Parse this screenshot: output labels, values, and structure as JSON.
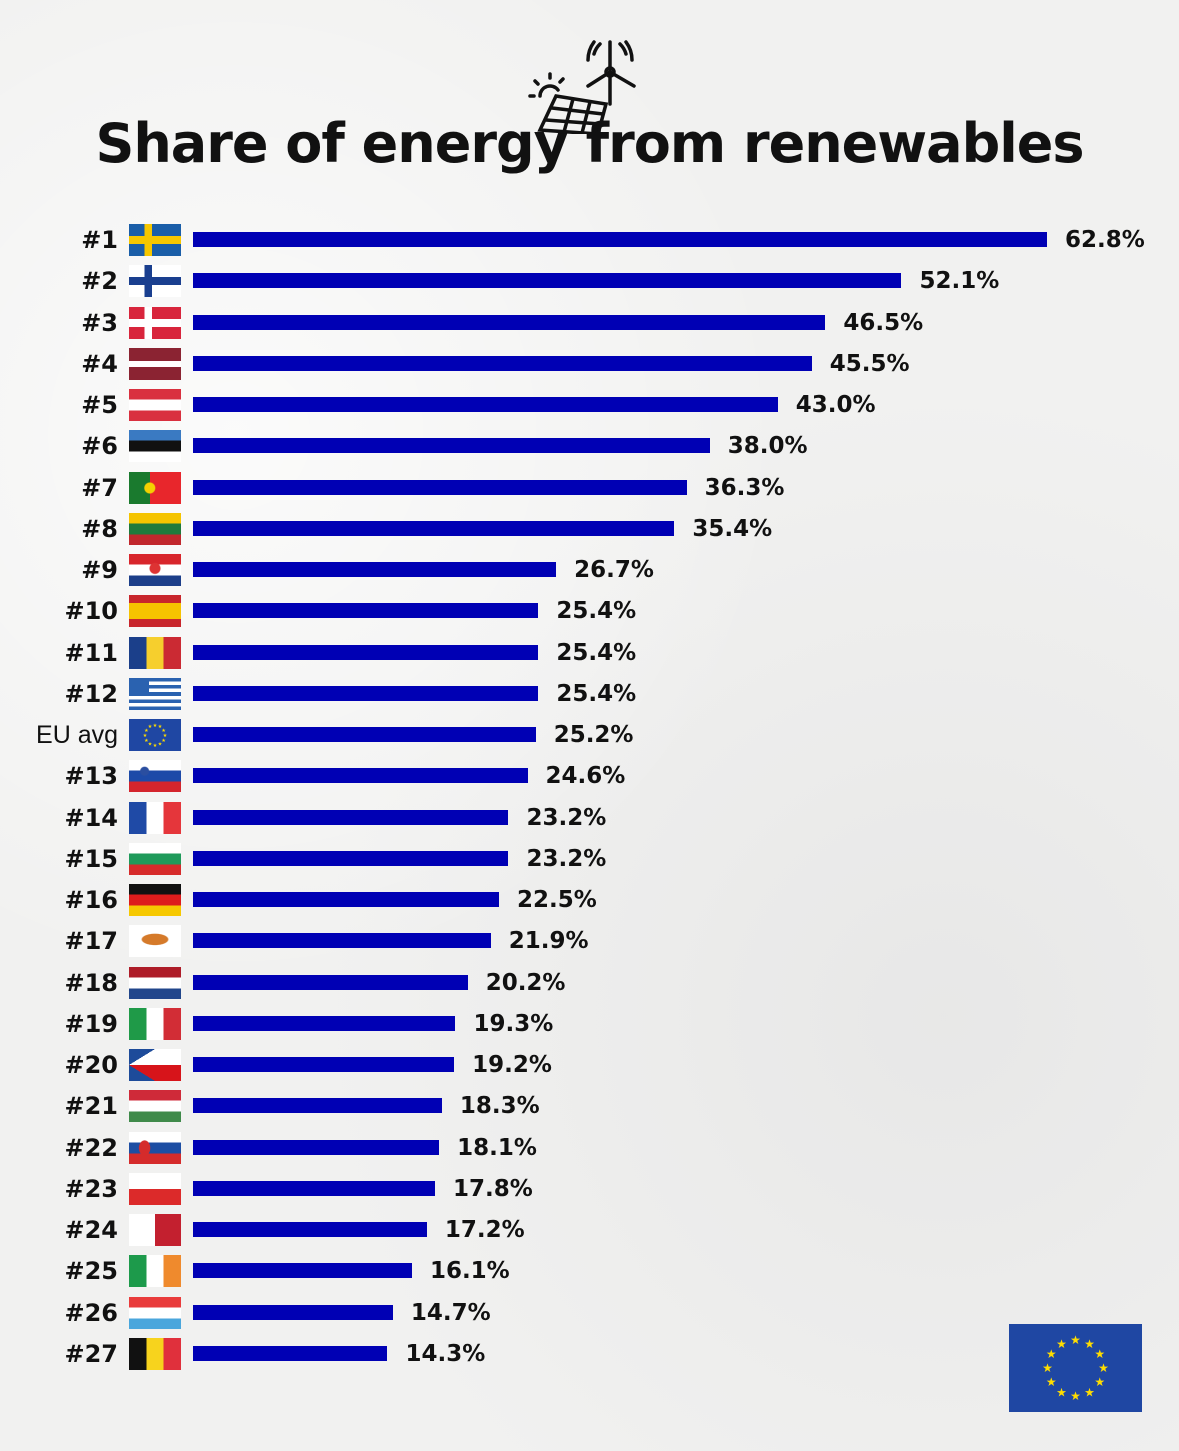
{
  "chart_data": {
    "type": "bar",
    "orientation": "horizontal",
    "title": "Share of energy from renewables",
    "unit": "%",
    "xlim": [
      0,
      62.8
    ],
    "rows": [
      {
        "rank": "#1",
        "flag": "flag-se",
        "value": 62.8,
        "label": "62.8%"
      },
      {
        "rank": "#2",
        "flag": "flag-fi",
        "value": 52.1,
        "label": "52.1%"
      },
      {
        "rank": "#3",
        "flag": "flag-dk",
        "value": 46.5,
        "label": "46.5%"
      },
      {
        "rank": "#4",
        "flag": "flag-lv",
        "value": 45.5,
        "label": "45.5%"
      },
      {
        "rank": "#5",
        "flag": "flag-at",
        "value": 43.0,
        "label": "43.0%"
      },
      {
        "rank": "#6",
        "flag": "flag-ee",
        "value": 38.0,
        "label": "38.0%"
      },
      {
        "rank": "#7",
        "flag": "flag-pt",
        "value": 36.3,
        "label": "36.3%"
      },
      {
        "rank": "#8",
        "flag": "flag-lt",
        "value": 35.4,
        "label": "35.4%"
      },
      {
        "rank": "#9",
        "flag": "flag-hr",
        "value": 26.7,
        "label": "26.7%"
      },
      {
        "rank": "#10",
        "flag": "flag-es",
        "value": 25.4,
        "label": "25.4%"
      },
      {
        "rank": "#11",
        "flag": "flag-ro",
        "value": 25.4,
        "label": "25.4%"
      },
      {
        "rank": "#12",
        "flag": "flag-gr",
        "value": 25.4,
        "label": "25.4%"
      },
      {
        "rank": "EU avg",
        "flag": "flag-eu",
        "value": 25.2,
        "label": "25.2%"
      },
      {
        "rank": "#13",
        "flag": "flag-si",
        "value": 24.6,
        "label": "24.6%"
      },
      {
        "rank": "#14",
        "flag": "flag-fr",
        "value": 23.2,
        "label": "23.2%"
      },
      {
        "rank": "#15",
        "flag": "flag-bg",
        "value": 23.2,
        "label": "23.2%"
      },
      {
        "rank": "#16",
        "flag": "flag-de",
        "value": 22.5,
        "label": "22.5%"
      },
      {
        "rank": "#17",
        "flag": "flag-cy",
        "value": 21.9,
        "label": "21.9%"
      },
      {
        "rank": "#18",
        "flag": "flag-nl",
        "value": 20.2,
        "label": "20.2%"
      },
      {
        "rank": "#19",
        "flag": "flag-it",
        "value": 19.3,
        "label": "19.3%"
      },
      {
        "rank": "#20",
        "flag": "flag-cz",
        "value": 19.2,
        "label": "19.2%"
      },
      {
        "rank": "#21",
        "flag": "flag-hu",
        "value": 18.3,
        "label": "18.3%"
      },
      {
        "rank": "#22",
        "flag": "flag-sk",
        "value": 18.1,
        "label": "18.1%"
      },
      {
        "rank": "#23",
        "flag": "flag-pl",
        "value": 17.8,
        "label": "17.8%"
      },
      {
        "rank": "#24",
        "flag": "flag-mt",
        "value": 17.2,
        "label": "17.2%"
      },
      {
        "rank": "#25",
        "flag": "flag-ie",
        "value": 16.1,
        "label": "16.1%"
      },
      {
        "rank": "#26",
        "flag": "flag-lu",
        "value": 14.7,
        "label": "14.7%"
      },
      {
        "rank": "#27",
        "flag": "flag-be",
        "value": 14.3,
        "label": "14.3%"
      }
    ]
  },
  "colors": {
    "bar": "#0000b4",
    "eu_blue": "#1f47a3",
    "eu_gold": "#ffdd00"
  },
  "logo_icon": "solar-panel-wind-turbine-icon",
  "corner_icon": "eu-flag-icon"
}
